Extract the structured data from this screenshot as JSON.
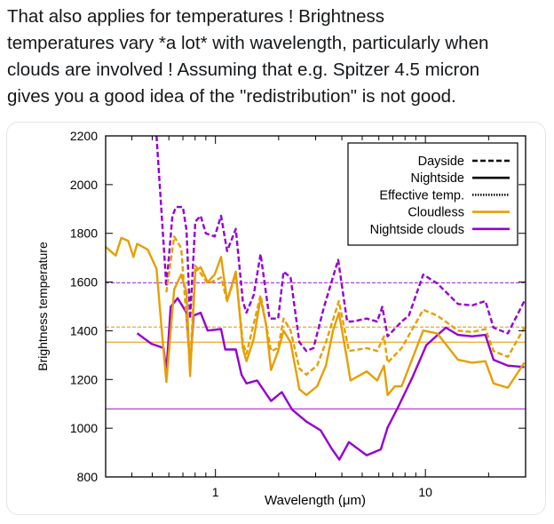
{
  "post": {
    "lines": [
      "That also applies for temperatures ! Brightness",
      "temperatures vary *a lot* with wavelength, particularly when",
      "clouds are involved ! Assuming that e.g. Spitzer 4.5 micron",
      "gives you a good idea of the \"redistribution\" is not good."
    ]
  },
  "chart_data": {
    "type": "line",
    "title": "",
    "xlabel": "Wavelength (μm)",
    "ylabel": "Brightness temperature",
    "xscale": "log",
    "xlim": [
      0.3,
      30
    ],
    "ylim": [
      800,
      2200
    ],
    "xticks": [
      {
        "value": 1,
        "label": "1"
      },
      {
        "value": 10,
        "label": "10"
      }
    ],
    "yticks": [
      800,
      1000,
      1200,
      1400,
      1600,
      1800,
      2000,
      2200
    ],
    "legend_position": "top-right",
    "legend": [
      {
        "label": "Dayside",
        "style": "dashed",
        "color": "#000000"
      },
      {
        "label": "Nightside",
        "style": "solid",
        "color": "#000000"
      },
      {
        "label": "Effective temp.",
        "style": "dotted",
        "color": "#000000"
      },
      {
        "label": "Cloudless",
        "style": "solid",
        "color": "#e69f00"
      },
      {
        "label": "Nightside clouds",
        "style": "solid",
        "color": "#9400d3"
      }
    ],
    "series": [
      {
        "name": "Nightside clouds - nightside",
        "color": "#9400d3",
        "style": "solid",
        "x": [
          0.424,
          0.495,
          0.566,
          0.584,
          0.612,
          0.661,
          0.728,
          0.757,
          0.787,
          0.85,
          0.918,
          1.064,
          1.114,
          1.25,
          1.33,
          1.405,
          1.58,
          1.84,
          2.07,
          2.32,
          2.71,
          3.17,
          3.56,
          3.89,
          4.32,
          5.25,
          6.13,
          6.61,
          7.43,
          8.66,
          10.1,
          12.5,
          14.3,
          16.7,
          19.3,
          21.1,
          24.7,
          29.6
        ],
        "y": [
          1390,
          1347,
          1329,
          1233,
          1498,
          1534,
          1474,
          1251,
          1462,
          1474,
          1401,
          1407,
          1323,
          1323,
          1220,
          1184,
          1196,
          1112,
          1148,
          1076,
          1027,
          991,
          919,
          871,
          943,
          889,
          913,
          1003,
          1088,
          1208,
          1341,
          1413,
          1383,
          1377,
          1383,
          1281,
          1257,
          1251
        ]
      },
      {
        "name": "Cloudless - nightside",
        "color": "#e69f00",
        "style": "solid",
        "x": [
          0.299,
          0.335,
          0.356,
          0.384,
          0.407,
          0.424,
          0.476,
          0.524,
          0.555,
          0.584,
          0.636,
          0.687,
          0.728,
          0.757,
          0.802,
          0.85,
          0.918,
          0.992,
          1.064,
          1.136,
          1.25,
          1.35,
          1.405,
          1.52,
          1.64,
          1.74,
          1.84,
          1.99,
          2.11,
          2.28,
          2.51,
          2.71,
          3.05,
          3.36,
          3.63,
          3.87,
          4.24,
          4.4,
          5.25,
          5.89,
          6.35,
          6.61,
          7.15,
          7.71,
          9.76,
          11.4,
          14.3,
          16.7,
          19.3,
          21.1,
          24.7,
          29.6
        ],
        "y": [
          1745,
          1709,
          1781,
          1769,
          1703,
          1757,
          1733,
          1655,
          1401,
          1190,
          1570,
          1631,
          1558,
          1214,
          1643,
          1661,
          1600,
          1631,
          1703,
          1522,
          1643,
          1329,
          1275,
          1365,
          1534,
          1426,
          1239,
          1317,
          1401,
          1353,
          1160,
          1136,
          1172,
          1257,
          1401,
          1474,
          1281,
          1196,
          1233,
          1196,
          1257,
          1136,
          1172,
          1172,
          1401,
          1389,
          1281,
          1269,
          1275,
          1184,
          1166,
          1269
        ]
      },
      {
        "name": "Nightside clouds - dayside",
        "color": "#9400d3",
        "style": "dashed",
        "x": [
          0.524,
          0.555,
          0.584,
          0.624,
          0.649,
          0.7,
          0.728,
          0.757,
          0.802,
          0.85,
          0.9,
          0.992,
          1.064,
          1.136,
          1.25,
          1.35,
          1.405,
          1.52,
          1.64,
          1.81,
          1.99,
          2.11,
          2.28,
          2.51,
          2.71,
          2.93,
          3.29,
          3.84,
          4.24,
          4.48,
          5.25,
          5.89,
          6.23,
          6.61,
          7.71,
          8.34,
          9.76,
          11.4,
          14.3,
          16.7,
          19.3,
          21.1,
          24.7,
          29.6
        ],
        "y": [
          2200,
          1872,
          1582,
          1872,
          1908,
          1908,
          1812,
          1450,
          1848,
          1872,
          1800,
          1787,
          1872,
          1727,
          1818,
          1522,
          1474,
          1546,
          1715,
          1450,
          1450,
          1643,
          1619,
          1353,
          1317,
          1329,
          1498,
          1691,
          1438,
          1438,
          1450,
          1438,
          1498,
          1377,
          1438,
          1462,
          1631,
          1594,
          1510,
          1504,
          1522,
          1413,
          1389,
          1522
        ]
      },
      {
        "name": "Cloudless - dayside",
        "color": "#e69f00",
        "style": "dashed",
        "x": [
          0.584,
          0.636,
          0.687,
          0.757,
          0.802,
          0.918,
          0.992,
          1.064,
          1.136,
          1.25,
          1.35,
          1.405,
          1.64,
          1.84,
          1.99,
          2.11,
          2.28,
          2.51,
          2.71,
          3.05,
          3.36,
          3.87,
          4.32,
          5.25,
          5.89,
          6.35,
          6.61,
          7.71,
          9.76,
          11.4,
          14.3,
          16.7,
          19.3,
          21.1,
          24.7,
          29.6
        ],
        "y": [
          1558,
          1787,
          1739,
          1257,
          1667,
          1594,
          1606,
          1619,
          1522,
          1631,
          1353,
          1305,
          1546,
          1317,
          1329,
          1450,
          1401,
          1245,
          1220,
          1257,
          1353,
          1522,
          1317,
          1329,
          1317,
          1377,
          1269,
          1329,
          1486,
          1462,
          1401,
          1395,
          1407,
          1317,
          1293,
          1413
        ]
      }
    ],
    "hlines": [
      {
        "name": "Nightside clouds - dayside effective",
        "value": 1597,
        "color": "#b44fe0",
        "style": "dashed"
      },
      {
        "name": "Cloudless - dayside effective",
        "value": 1415,
        "color": "#eeb040",
        "style": "dashed"
      },
      {
        "name": "Cloudless - nightside effective",
        "value": 1353,
        "color": "#eeb040",
        "style": "solid"
      },
      {
        "name": "Nightside clouds - nightside effective",
        "value": 1079,
        "color": "#b44fe0",
        "style": "solid"
      }
    ]
  }
}
